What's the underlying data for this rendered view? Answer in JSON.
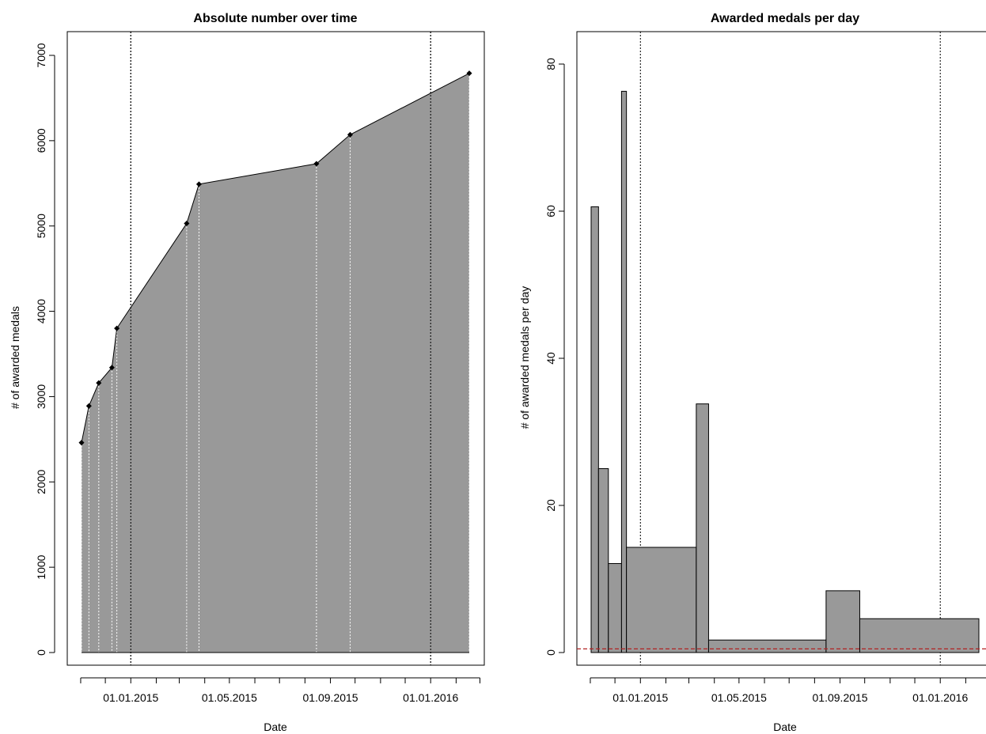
{
  "chart_data": [
    {
      "type": "area",
      "title": "Absolute number over time",
      "xlabel": "Date",
      "ylabel": "# of awarded medals",
      "x_ticks": [
        "01.01.2015",
        "01.05.2015",
        "01.09.2015",
        "01.01.2016"
      ],
      "y_ticks": [
        "0",
        "1000",
        "2000",
        "3000",
        "4000",
        "5000",
        "6000",
        "7000"
      ],
      "ylim": [
        0,
        7000
      ],
      "reference_lines": [
        "2015-01-01",
        "2016-01-01"
      ],
      "fill_color": "#999999",
      "points": [
        {
          "x": "2014-11-02",
          "y": 2460
        },
        {
          "x": "2014-11-11",
          "y": 2890
        },
        {
          "x": "2014-11-23",
          "y": 3160
        },
        {
          "x": "2014-12-09",
          "y": 3340
        },
        {
          "x": "2014-12-15",
          "y": 3800
        },
        {
          "x": "2015-03-10",
          "y": 5030
        },
        {
          "x": "2015-03-25",
          "y": 5490
        },
        {
          "x": "2015-08-15",
          "y": 5730
        },
        {
          "x": "2015-09-25",
          "y": 6070
        },
        {
          "x": "2016-02-17",
          "y": 6790
        }
      ]
    },
    {
      "type": "bar",
      "title": "Awarded medals per day",
      "xlabel": "Date",
      "ylabel": "# of awarded medals per day",
      "x_ticks": [
        "01.01.2015",
        "01.05.2015",
        "01.09.2015",
        "01.01.2016"
      ],
      "y_ticks": [
        "0",
        "20",
        "40",
        "60",
        "80"
      ],
      "ylim": [
        0,
        80
      ],
      "reference_lines": [
        "2015-01-01",
        "2016-01-01"
      ],
      "baseline_value": 0.5,
      "baseline_color": "#b22222",
      "fill_color": "#999999",
      "bars": [
        {
          "start": "2014-11-02",
          "end": "2014-11-11",
          "value": 60.6
        },
        {
          "start": "2014-11-11",
          "end": "2014-11-23",
          "value": 25.0
        },
        {
          "start": "2014-11-23",
          "end": "2014-12-09",
          "value": 12.1
        },
        {
          "start": "2014-12-09",
          "end": "2014-12-15",
          "value": 76.3
        },
        {
          "start": "2014-12-15",
          "end": "2015-03-10",
          "value": 14.3
        },
        {
          "start": "2015-03-10",
          "end": "2015-03-25",
          "value": 33.8
        },
        {
          "start": "2015-03-25",
          "end": "2015-08-15",
          "value": 1.7
        },
        {
          "start": "2015-08-15",
          "end": "2015-09-25",
          "value": 8.4
        },
        {
          "start": "2015-09-25",
          "end": "2016-02-17",
          "value": 4.6
        }
      ]
    }
  ]
}
